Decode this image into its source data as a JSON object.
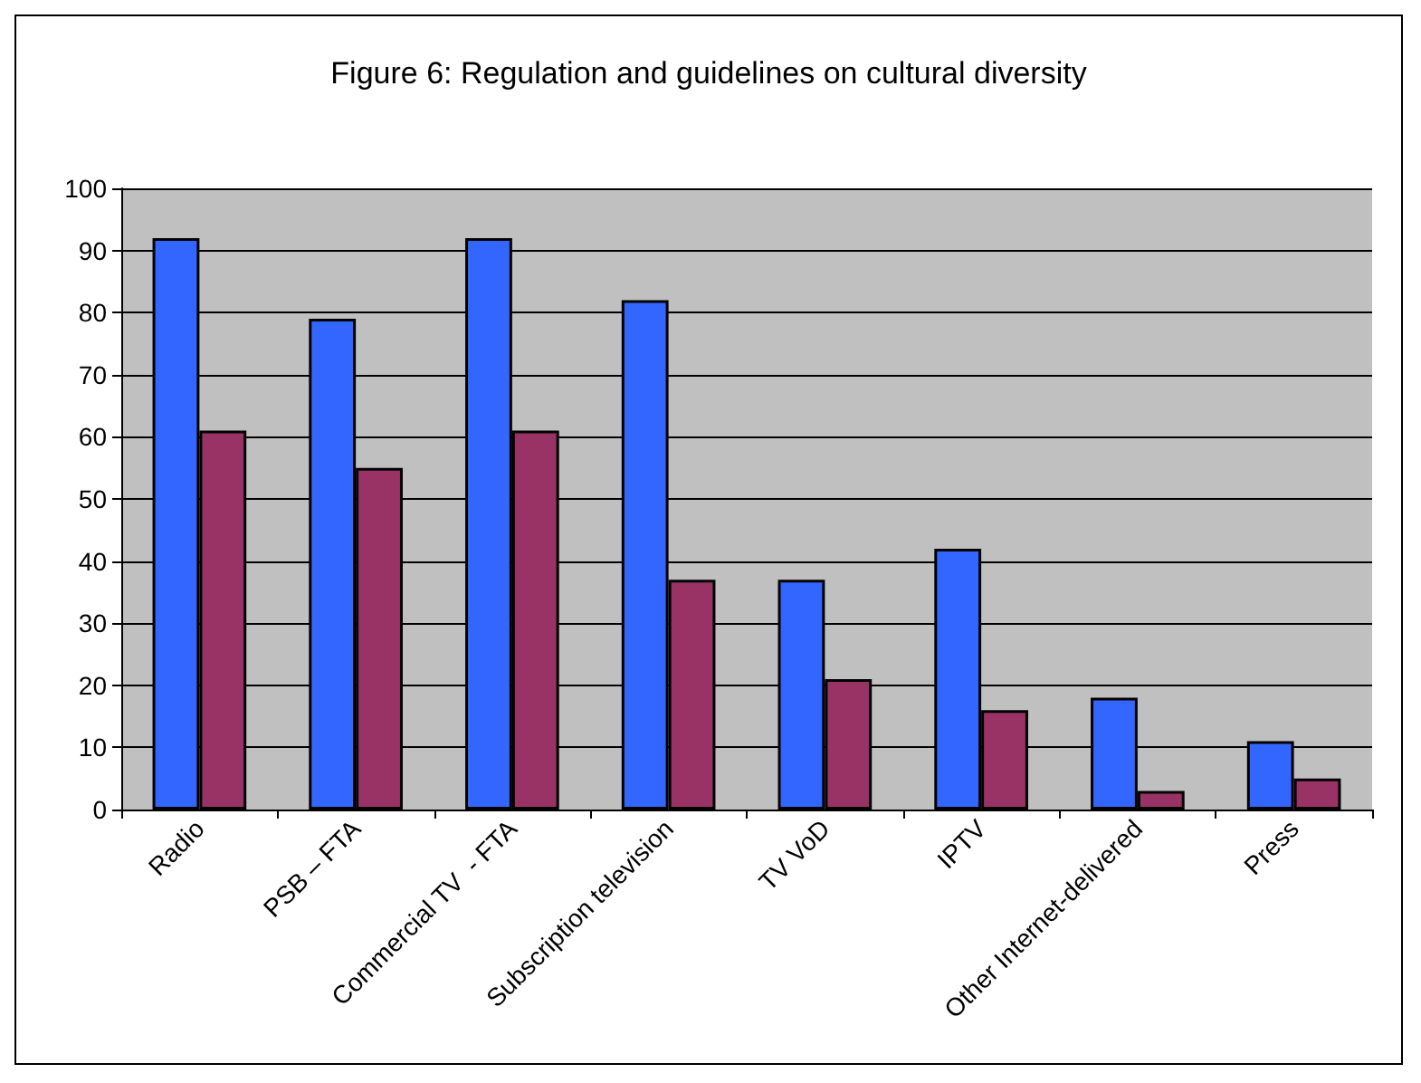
{
  "chart_data": {
    "type": "bar",
    "title": "Figure 6: Regulation and guidelines on cultural diversity",
    "categories": [
      "Radio",
      "PSB – FTA",
      "Commercial TV  - FTA",
      "Subscription television",
      "TV VoD",
      "IPTV",
      "Other Internet-delivered",
      "Press"
    ],
    "series": [
      {
        "color": "#3366ff",
        "values": [
          92,
          79,
          92,
          82,
          37,
          42,
          18,
          11
        ]
      },
      {
        "color": "#993366",
        "values": [
          61,
          55,
          61,
          37,
          21,
          16,
          3,
          5
        ]
      }
    ],
    "ylim": [
      0,
      100
    ],
    "yticks": [
      0,
      10,
      20,
      30,
      40,
      50,
      60,
      70,
      80,
      90,
      100
    ],
    "grid": "y"
  }
}
